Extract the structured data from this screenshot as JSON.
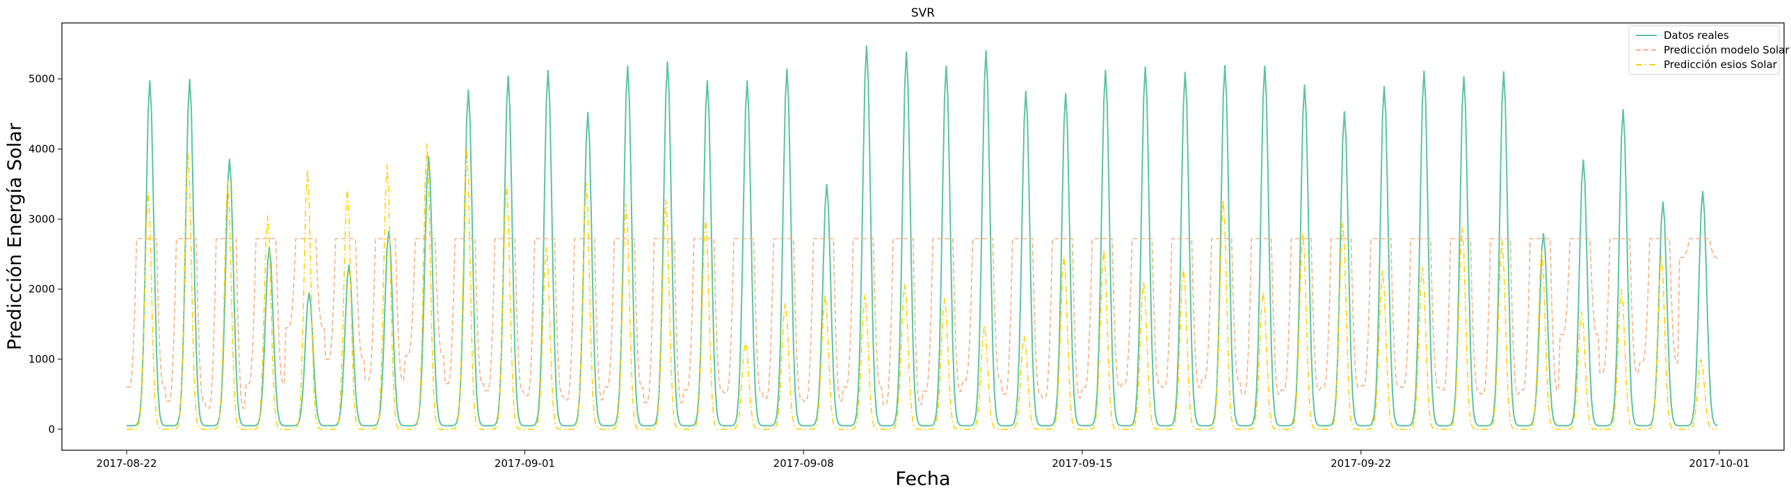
{
  "chart_data": {
    "type": "line",
    "title": "SVR",
    "xlabel": "Fecha",
    "ylabel": "Predicción Energía Solar",
    "xlim": [
      "2017-08-20T09:00",
      "2017-10-02T15:00"
    ],
    "ylim": [
      -300,
      5800
    ],
    "x_ticks": [
      "2017-08-22",
      "2017-09-01",
      "2017-09-08",
      "2017-09-15",
      "2017-09-22",
      "2017-10-01"
    ],
    "y_ticks": [
      0,
      1000,
      2000,
      3000,
      4000,
      5000
    ],
    "legend_position": "top-right",
    "grid": false,
    "day_range": [
      "2017-08-22",
      "2017-09-30"
    ],
    "series": [
      {
        "name": "Datos reales",
        "color": "#5bc4a0",
        "style": "solid",
        "daily_peaks": [
          4980,
          5000,
          3860,
          2600,
          1950,
          2350,
          2830,
          3900,
          4850,
          5050,
          5130,
          4530,
          5190,
          5250,
          4980,
          4980,
          5150,
          3500,
          5480,
          5390,
          5190,
          5410,
          4830,
          4800,
          5130,
          5180,
          5100,
          5200,
          5190,
          4920,
          4540,
          4900,
          5120,
          5040,
          5110,
          2800,
          3850,
          4570,
          3250,
          3400
        ],
        "night_value": 50
      },
      {
        "name": "Predicción modelo Solar",
        "color": "#f4b183",
        "style": "dashed",
        "daily_peaks": [
          2720,
          2720,
          2720,
          2720,
          2720,
          2720,
          2720,
          2720,
          2720,
          2720,
          2720,
          2720,
          2720,
          2720,
          2720,
          2720,
          2720,
          2720,
          2720,
          2720,
          2720,
          2720,
          2720,
          2720,
          2720,
          2720,
          2720,
          2720,
          2720,
          2720,
          2720,
          2720,
          2720,
          2720,
          2720,
          2720,
          2720,
          2720,
          2720,
          2720
        ],
        "night_values": [
          600,
          400,
          300,
          650,
          1450,
          1000,
          700,
          1050,
          650,
          550,
          480,
          420,
          600,
          380,
          560,
          520,
          440,
          400,
          600,
          350,
          540,
          700,
          500,
          450,
          600,
          650,
          600,
          700,
          500,
          560,
          600,
          620,
          600,
          560,
          500,
          560,
          1350,
          800,
          950,
          2450
        ]
      },
      {
        "name": "Predicción esios Solar",
        "color": "#ffd000",
        "style": "dashdot",
        "daily_peaks": [
          3390,
          3940,
          3550,
          3050,
          3700,
          3440,
          3780,
          4080,
          4020,
          3480,
          2600,
          3520,
          3220,
          3280,
          3000,
          1250,
          1800,
          1920,
          1920,
          2070,
          1870,
          1480,
          1330,
          2480,
          2560,
          2100,
          2300,
          3270,
          1970,
          2800,
          2950,
          2270,
          2310,
          2880,
          2700,
          2550,
          1680,
          2000,
          2480,
          1000
        ],
        "night_value": 0
      }
    ]
  }
}
